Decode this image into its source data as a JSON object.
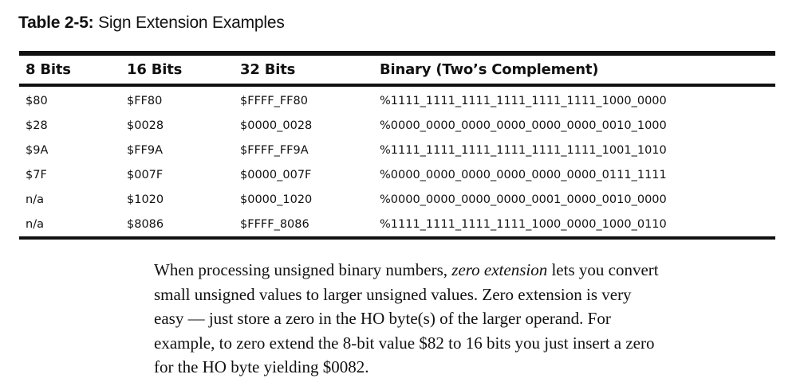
{
  "caption": {
    "label": "Table 2-5:",
    "title": "Sign Extension Examples"
  },
  "table": {
    "headers": [
      "8 Bits",
      "16 Bits",
      "32 Bits",
      "Binary (Two’s Complement)"
    ],
    "rows": [
      [
        "$80",
        "$FF80",
        "$FFFF_FF80",
        "%1111_1111_1111_1111_1111_1111_1000_0000"
      ],
      [
        "$28",
        "$0028",
        "$0000_0028",
        "%0000_0000_0000_0000_0000_0000_0010_1000"
      ],
      [
        "$9A",
        "$FF9A",
        "$FFFF_FF9A",
        "%1111_1111_1111_1111_1111_1111_1001_1010"
      ],
      [
        "$7F",
        "$007F",
        "$0000_007F",
        "%0000_0000_0000_0000_0000_0000_0111_1111"
      ],
      [
        "n/a",
        "$1020",
        "$0000_1020",
        "%0000_0000_0000_0000_0001_0000_0010_0000"
      ],
      [
        "n/a",
        "$8086",
        "$FFFF_8086",
        "%1111_1111_1111_1111_1000_0000_1000_0110"
      ]
    ]
  },
  "paragraph": {
    "line1_before": "When processing unsigned binary numbers, ",
    "line1_em": "zero extension",
    "line1_after": " lets you convert",
    "line2": "small unsigned values to larger unsigned values. Zero extension is very",
    "line3": "easy — just store a zero in the HO byte(s) of the larger operand. For",
    "line4": "example, to zero extend the 8-bit value $82 to 16 bits you just insert a zero",
    "line5": "for the HO byte yielding $0082."
  }
}
